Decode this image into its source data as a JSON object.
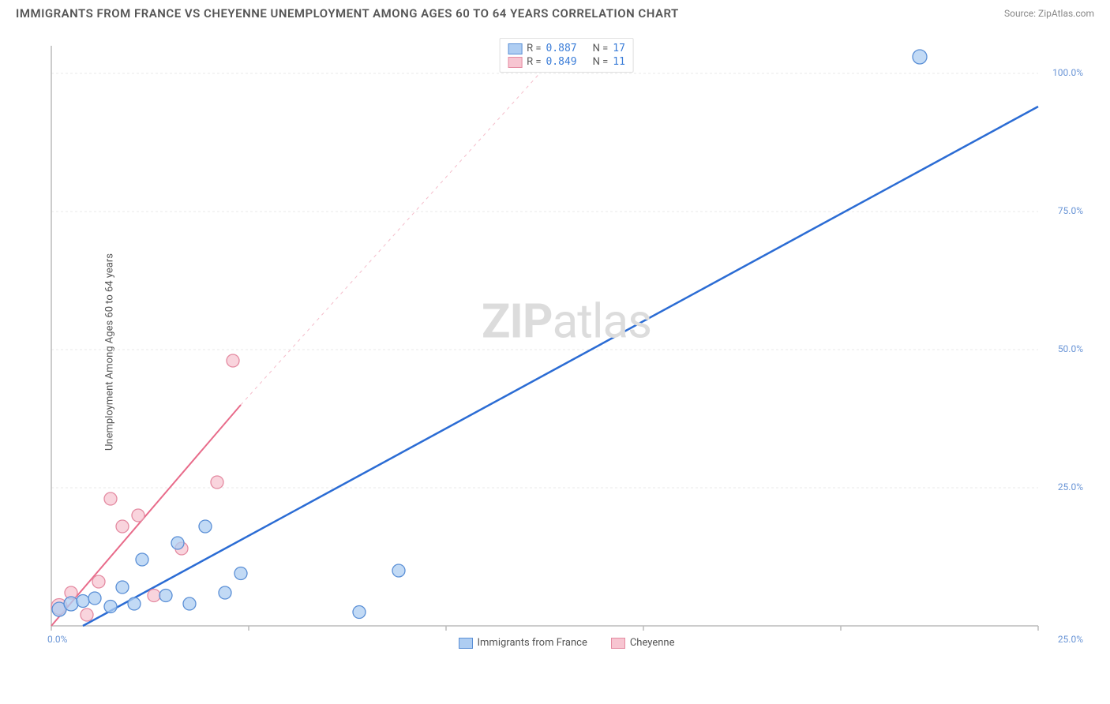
{
  "header": {
    "title": "IMMIGRANTS FROM FRANCE VS CHEYENNE UNEMPLOYMENT AMONG AGES 60 TO 64 YEARS CORRELATION CHART",
    "source_prefix": "Source: ",
    "source_name": "ZipAtlas.com"
  },
  "watermark": {
    "part1": "ZIP",
    "part2": "atlas"
  },
  "y_axis": {
    "label": "Unemployment Among Ages 60 to 64 years"
  },
  "chart": {
    "type": "scatter",
    "plot_color": "#ffffff",
    "grid_color": "#e8e8e8",
    "axis_line_color": "#bbbbbb",
    "xlim": [
      0,
      25
    ],
    "ylim": [
      0,
      105
    ],
    "x_ticks": [
      0,
      5,
      10,
      15,
      20,
      25
    ],
    "x_tick_labels": [
      "0.0%",
      "",
      "",
      "",
      "",
      "25.0%"
    ],
    "y_ticks": [
      25,
      50,
      75,
      100
    ],
    "y_tick_labels": [
      "25.0%",
      "50.0%",
      "75.0%",
      "100.0%"
    ],
    "series": [
      {
        "name": "Immigrants from France",
        "R": "0.887",
        "N": "17",
        "fill": "#aecdf2",
        "stroke": "#5a8fd6",
        "trend_line_color": "#2b6cd4",
        "trend_line_width": 2.5,
        "trend_dash": "none",
        "trend_start": [
          0.8,
          0
        ],
        "trend_end": [
          25,
          94
        ],
        "marker_r_default": 8,
        "points": [
          {
            "x": 0.2,
            "y": 3,
            "r": 9
          },
          {
            "x": 0.5,
            "y": 4,
            "r": 9
          },
          {
            "x": 0.8,
            "y": 4.5,
            "r": 8
          },
          {
            "x": 1.1,
            "y": 5,
            "r": 8
          },
          {
            "x": 1.5,
            "y": 3.5,
            "r": 8
          },
          {
            "x": 1.8,
            "y": 7,
            "r": 8
          },
          {
            "x": 2.1,
            "y": 4,
            "r": 8
          },
          {
            "x": 2.3,
            "y": 12,
            "r": 8
          },
          {
            "x": 2.9,
            "y": 5.5,
            "r": 8
          },
          {
            "x": 3.2,
            "y": 15,
            "r": 8
          },
          {
            "x": 3.5,
            "y": 4,
            "r": 8
          },
          {
            "x": 3.9,
            "y": 18,
            "r": 8
          },
          {
            "x": 4.4,
            "y": 6,
            "r": 8
          },
          {
            "x": 4.8,
            "y": 9.5,
            "r": 8
          },
          {
            "x": 7.8,
            "y": 2.5,
            "r": 8
          },
          {
            "x": 8.8,
            "y": 10,
            "r": 8
          },
          {
            "x": 22.0,
            "y": 103,
            "r": 9
          }
        ]
      },
      {
        "name": "Cheyenne",
        "R": "0.849",
        "N": "11",
        "fill": "#f7c5d1",
        "stroke": "#e48aa1",
        "trend_line_color": "#e86b8a",
        "trend_line_width": 2,
        "trend_dash": "dashed-fade",
        "trend_solid_end": [
          4.8,
          40
        ],
        "trend_start": [
          0,
          0
        ],
        "trend_end": [
          13,
          105
        ],
        "marker_r_default": 8,
        "points": [
          {
            "x": 0.2,
            "y": 3.5,
            "r": 10
          },
          {
            "x": 0.5,
            "y": 6,
            "r": 8
          },
          {
            "x": 0.9,
            "y": 2,
            "r": 8
          },
          {
            "x": 1.2,
            "y": 8,
            "r": 8
          },
          {
            "x": 1.5,
            "y": 23,
            "r": 8
          },
          {
            "x": 1.8,
            "y": 18,
            "r": 8
          },
          {
            "x": 2.2,
            "y": 20,
            "r": 8
          },
          {
            "x": 2.6,
            "y": 5.5,
            "r": 8
          },
          {
            "x": 3.3,
            "y": 14,
            "r": 8
          },
          {
            "x": 4.2,
            "y": 26,
            "r": 8
          },
          {
            "x": 4.6,
            "y": 48,
            "r": 8
          }
        ]
      }
    ]
  },
  "top_legend": {
    "R_label": "R =",
    "N_label": "N ="
  },
  "bottom_legend": {
    "items": [
      "Immigrants from France",
      "Cheyenne"
    ]
  }
}
